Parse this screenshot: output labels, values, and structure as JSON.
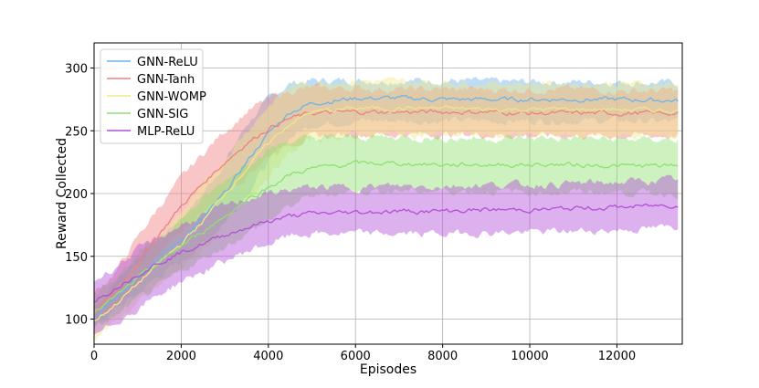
{
  "chart_data": {
    "type": "line",
    "xlabel": "Episodes",
    "ylabel": "Reward Collected",
    "xlim": [
      0,
      13500
    ],
    "ylim": [
      80,
      320
    ],
    "xticks": [
      0,
      2000,
      4000,
      6000,
      8000,
      10000,
      12000
    ],
    "yticks": [
      100,
      150,
      200,
      250,
      300
    ],
    "grid": true,
    "legend_position": "top-left",
    "band_style": "shaded band showing spread around each mean line",
    "series": [
      {
        "name": "GNN-ReLU",
        "color": "#6fb3e8",
        "x": [
          0,
          500,
          1000,
          1500,
          2000,
          2500,
          3000,
          3500,
          4000,
          4500,
          5000,
          6000,
          7000,
          8000,
          9000,
          10000,
          11000,
          12000,
          13400
        ],
        "mean": [
          100,
          118,
          135,
          150,
          163,
          180,
          200,
          225,
          248,
          265,
          272,
          276,
          276,
          275,
          275,
          275,
          275,
          275,
          274
        ],
        "upper": [
          110,
          130,
          150,
          165,
          180,
          200,
          225,
          255,
          275,
          288,
          290,
          290,
          290,
          290,
          289,
          289,
          289,
          289,
          288
        ],
        "lower": [
          92,
          108,
          120,
          135,
          145,
          160,
          178,
          200,
          225,
          245,
          255,
          258,
          258,
          258,
          258,
          258,
          258,
          258,
          257
        ]
      },
      {
        "name": "GNN-Tanh",
        "color": "#f08080",
        "x": [
          0,
          500,
          1000,
          1500,
          2000,
          2500,
          3000,
          3500,
          4000,
          4500,
          5000,
          6000,
          7000,
          8000,
          9000,
          10000,
          11000,
          12000,
          13400
        ],
        "mean": [
          105,
          122,
          145,
          168,
          190,
          208,
          225,
          240,
          252,
          260,
          264,
          265,
          265,
          265,
          265,
          264,
          264,
          264,
          264
        ],
        "upper": [
          120,
          138,
          165,
          190,
          212,
          232,
          250,
          265,
          275,
          282,
          284,
          284,
          283,
          283,
          283,
          283,
          283,
          282,
          282
        ],
        "lower": [
          95,
          110,
          128,
          150,
          170,
          185,
          200,
          215,
          230,
          240,
          245,
          247,
          247,
          247,
          247,
          246,
          246,
          246,
          246
        ]
      },
      {
        "name": "GNN-WOMP",
        "color": "#f0e68c",
        "x": [
          0,
          500,
          1000,
          1500,
          2000,
          2500,
          3000,
          3500,
          4000,
          4500,
          5000,
          6000,
          7000,
          8000,
          9000,
          10000,
          11000,
          12000,
          13400
        ],
        "mean": [
          98,
          112,
          128,
          145,
          160,
          178,
          200,
          220,
          240,
          256,
          265,
          268,
          268,
          268,
          267,
          267,
          267,
          267,
          266
        ],
        "upper": [
          110,
          126,
          145,
          165,
          185,
          205,
          228,
          250,
          270,
          285,
          289,
          290,
          289,
          289,
          288,
          288,
          288,
          288,
          287
        ],
        "lower": [
          85,
          98,
          112,
          126,
          140,
          155,
          175,
          195,
          215,
          232,
          243,
          247,
          247,
          247,
          246,
          246,
          246,
          246,
          245
        ]
      },
      {
        "name": "GNN-SIG",
        "color": "#90e070",
        "x": [
          0,
          500,
          1000,
          1500,
          2000,
          2500,
          3000,
          3500,
          4000,
          4500,
          5000,
          6000,
          7000,
          8000,
          9000,
          10000,
          11000,
          12000,
          13400
        ],
        "mean": [
          105,
          118,
          132,
          145,
          158,
          170,
          182,
          195,
          205,
          215,
          220,
          224,
          224,
          223,
          223,
          223,
          223,
          222,
          222
        ],
        "upper": [
          120,
          135,
          150,
          165,
          180,
          195,
          210,
          225,
          235,
          242,
          244,
          245,
          245,
          244,
          244,
          244,
          244,
          243,
          243
        ],
        "lower": [
          92,
          102,
          115,
          126,
          138,
          148,
          158,
          168,
          178,
          190,
          198,
          202,
          202,
          202,
          202,
          201,
          201,
          201,
          200
        ]
      },
      {
        "name": "MLP-ReLU",
        "color": "#b44fd9",
        "x": [
          0,
          500,
          1000,
          1500,
          2000,
          2500,
          3000,
          3500,
          4000,
          4500,
          5000,
          6000,
          7000,
          8000,
          9000,
          10000,
          11000,
          12000,
          13400
        ],
        "mean": [
          115,
          125,
          136,
          145,
          153,
          160,
          167,
          173,
          178,
          182,
          184,
          185,
          186,
          186,
          187,
          187,
          188,
          189,
          191
        ],
        "upper": [
          130,
          142,
          155,
          165,
          175,
          182,
          190,
          196,
          200,
          203,
          205,
          205,
          206,
          206,
          207,
          207,
          208,
          209,
          211
        ],
        "lower": [
          85,
          98,
          108,
          120,
          130,
          138,
          146,
          154,
          160,
          166,
          168,
          168,
          168,
          168,
          169,
          169,
          170,
          171,
          173
        ]
      }
    ]
  }
}
